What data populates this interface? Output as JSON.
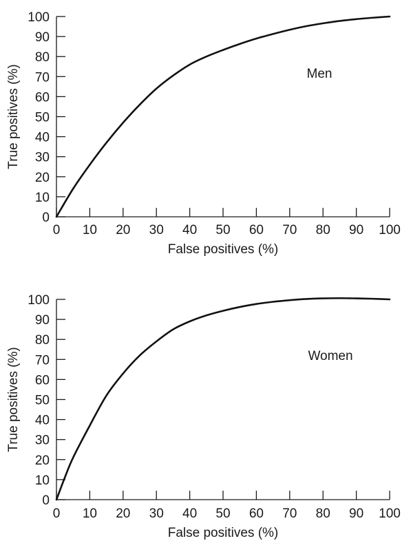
{
  "chart_data": [
    {
      "type": "line",
      "title": "",
      "xlabel": "False positives (%)",
      "ylabel": "True positives (%)",
      "xlim": [
        0,
        100
      ],
      "ylim": [
        0,
        100
      ],
      "xticks": [
        "0",
        "10",
        "20",
        "30",
        "40",
        "50",
        "60",
        "70",
        "80",
        "90",
        "100"
      ],
      "yticks": [
        "0",
        "10",
        "20",
        "30",
        "40",
        "50",
        "60",
        "70",
        "80",
        "90",
        "100"
      ],
      "grid": false,
      "annotation": "Men",
      "series": [
        {
          "x": [
            0,
            5,
            10,
            15,
            20,
            25,
            30,
            35,
            40,
            45,
            50,
            55,
            60,
            65,
            70,
            75,
            80,
            85,
            90,
            95,
            100
          ],
          "y": [
            0,
            14,
            26,
            37,
            47,
            56,
            64,
            70.5,
            76,
            80,
            83.3,
            86.3,
            89,
            91.3,
            93.4,
            95.2,
            96.6,
            97.8,
            98.7,
            99.4,
            100
          ]
        }
      ]
    },
    {
      "type": "line",
      "title": "",
      "xlabel": "False positives (%)",
      "ylabel": "True positives (%)",
      "xlim": [
        0,
        100
      ],
      "ylim": [
        0,
        100
      ],
      "xticks": [
        "0",
        "10",
        "20",
        "30",
        "40",
        "50",
        "60",
        "70",
        "80",
        "90",
        "100"
      ],
      "yticks": [
        "0",
        "10",
        "20",
        "30",
        "40",
        "50",
        "60",
        "70",
        "80",
        "90",
        "100"
      ],
      "grid": false,
      "annotation": "Women",
      "series": [
        {
          "x": [
            0,
            2.5,
            5,
            10,
            15,
            20,
            25,
            30,
            35,
            40,
            45,
            50,
            55,
            60,
            65,
            70,
            75,
            80,
            85,
            90,
            95,
            100
          ],
          "y": [
            0,
            11,
            21,
            37,
            52,
            63,
            72,
            79,
            85,
            89,
            92,
            94.3,
            96.2,
            97.7,
            98.8,
            99.6,
            100.2,
            100.5,
            100.6,
            100.5,
            100.3,
            100
          ]
        }
      ]
    }
  ]
}
